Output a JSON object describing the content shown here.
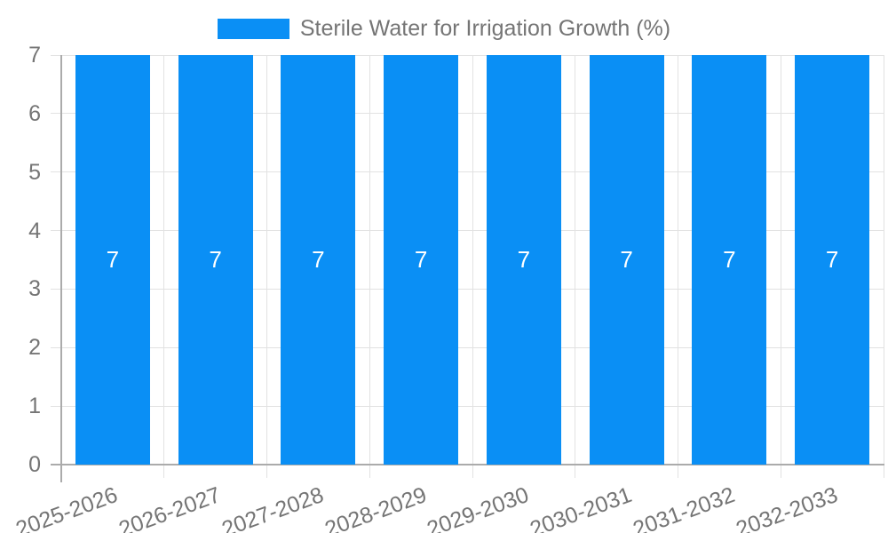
{
  "page": {
    "background": "#ffffff"
  },
  "legend": {
    "label": "Sterile Water for Irrigation Growth (%)",
    "swatch_color": "#0A8FF5"
  },
  "chart_data": {
    "type": "bar",
    "title": "Sterile Water for Irrigation Growth (%)",
    "categories": [
      "2025-2026",
      "2026-2027",
      "2027-2028",
      "2028-2029",
      "2029-2030",
      "2030-2031",
      "2031-2032",
      "2032-2033"
    ],
    "values": [
      7,
      7,
      7,
      7,
      7,
      7,
      7,
      7
    ],
    "value_labels": [
      "7",
      "7",
      "7",
      "7",
      "7",
      "7",
      "7",
      "7"
    ],
    "xlabel": "",
    "ylabel": "",
    "ylim": [
      0,
      7
    ],
    "yticks": [
      0,
      1,
      2,
      3,
      4,
      5,
      6,
      7
    ],
    "grid": true,
    "legend_position": "top-center",
    "colors": {
      "bar": "#0A8FF5",
      "grid": "#e2e2e2",
      "axis": "#ababab",
      "tick_label": "#757575",
      "value_label": "#ffffff",
      "background": "#ffffff"
    }
  }
}
